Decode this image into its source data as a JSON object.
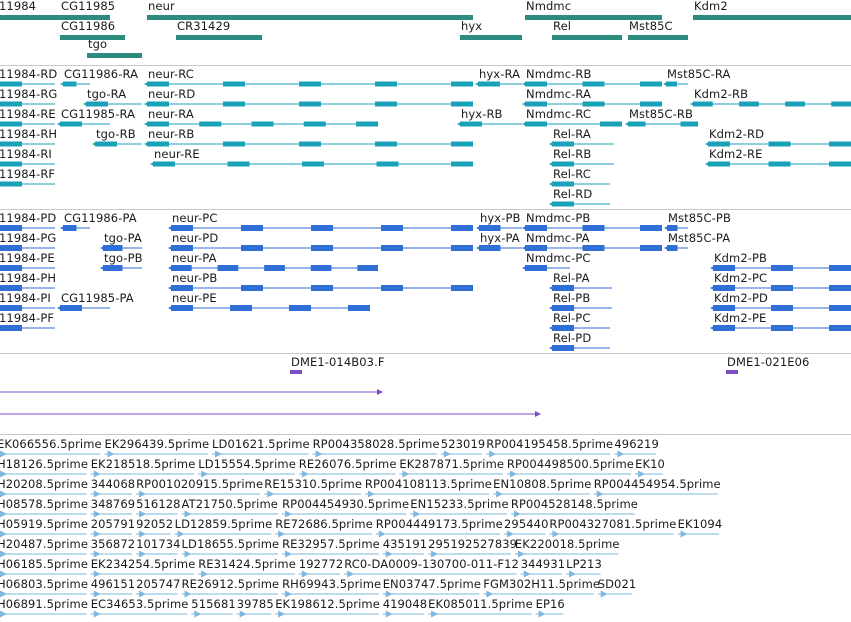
{
  "colors": {
    "gene": "#2e8b7f",
    "flybase": "#17a2b8",
    "refseq": "#2f6fd6",
    "clone": "#7c4fc7",
    "est": "#7fb7e0",
    "separator": "#c9c9c9"
  },
  "tracks": {
    "genes": {
      "color": "gene",
      "features": [
        {
          "label": "11984",
          "row": 0,
          "start": -2,
          "end": 65
        },
        {
          "label": "CG11985",
          "row": 0,
          "start": 60,
          "end": 110
        },
        {
          "label": "CG11986",
          "row": 1,
          "start": 60,
          "end": 125
        },
        {
          "label": "tgo",
          "row": 2,
          "start": 87,
          "end": 142
        },
        {
          "label": "neur",
          "row": 0,
          "start": 147,
          "end": 473
        },
        {
          "label": "CR31429",
          "row": 1,
          "start": 176,
          "end": 262
        },
        {
          "label": "hyx",
          "row": 1,
          "start": 460,
          "end": 522
        },
        {
          "label": "Nmdmc",
          "row": 0,
          "start": 525,
          "end": 662
        },
        {
          "label": "Rel",
          "row": 1,
          "start": 552,
          "end": 622
        },
        {
          "label": "Mst85C",
          "row": 1,
          "start": 628,
          "end": 688
        },
        {
          "label": "Kdm2",
          "row": 0,
          "start": 693,
          "end": 851
        }
      ]
    },
    "flybase": {
      "color": "flybase",
      "features": [
        {
          "label": "11984-RD",
          "row": 0,
          "start": -2,
          "end": 55
        },
        {
          "label": "11984-RG",
          "row": 1,
          "start": -2,
          "end": 55
        },
        {
          "label": "11984-RE",
          "row": 2,
          "start": -2,
          "end": 55
        },
        {
          "label": "11984-RH",
          "row": 3,
          "start": -2,
          "end": 55
        },
        {
          "label": "11984-RI",
          "row": 4,
          "start": -2,
          "end": 55
        },
        {
          "label": "11984-RF",
          "row": 5,
          "start": -2,
          "end": 55
        },
        {
          "label": "CG11986-RA",
          "row": 0,
          "start": 63,
          "end": 90
        },
        {
          "label": "tgo-RA",
          "row": 1,
          "start": 86,
          "end": 142
        },
        {
          "label": "CG11985-RA",
          "row": 2,
          "start": 60,
          "end": 110
        },
        {
          "label": "tgo-RB",
          "row": 3,
          "start": 95,
          "end": 142
        },
        {
          "label": "neur-RC",
          "row": 0,
          "start": 147,
          "end": 473
        },
        {
          "label": "neur-RD",
          "row": 1,
          "start": 147,
          "end": 473
        },
        {
          "label": "neur-RA",
          "row": 2,
          "start": 147,
          "end": 378
        },
        {
          "label": "neur-RB",
          "row": 3,
          "start": 147,
          "end": 473
        },
        {
          "label": "neur-RE",
          "row": 4,
          "start": 153,
          "end": 473
        },
        {
          "label": "hyx-RA",
          "row": 0,
          "start": 478,
          "end": 522
        },
        {
          "label": "hyx-RB",
          "row": 2,
          "start": 460,
          "end": 522
        },
        {
          "label": "Nmdmc-RB",
          "row": 0,
          "start": 525,
          "end": 662
        },
        {
          "label": "Nmdmc-RA",
          "row": 1,
          "start": 525,
          "end": 662
        },
        {
          "label": "Nmdmc-RC",
          "row": 2,
          "start": 525,
          "end": 622
        },
        {
          "label": "Rel-RA",
          "row": 3,
          "start": 552,
          "end": 614
        },
        {
          "label": "Rel-RB",
          "row": 4,
          "start": 552,
          "end": 614
        },
        {
          "label": "Rel-RC",
          "row": 5,
          "start": 552,
          "end": 610
        },
        {
          "label": "Rel-RD",
          "row": 6,
          "start": 552,
          "end": 610
        },
        {
          "label": "Mst85C-RA",
          "row": 0,
          "start": 666,
          "end": 688
        },
        {
          "label": "Mst85C-RB",
          "row": 2,
          "start": 628,
          "end": 698
        },
        {
          "label": "Kdm2-RB",
          "row": 1,
          "start": 693,
          "end": 851
        },
        {
          "label": "Kdm2-RD",
          "row": 3,
          "start": 708,
          "end": 851
        },
        {
          "label": "Kdm2-RE",
          "row": 4,
          "start": 708,
          "end": 851
        }
      ]
    },
    "refseq": {
      "color": "refseq",
      "features": [
        {
          "label": "11984-PD",
          "row": 0,
          "start": -2,
          "end": 55
        },
        {
          "label": "11984-PG",
          "row": 1,
          "start": -2,
          "end": 55
        },
        {
          "label": "11984-PE",
          "row": 2,
          "start": -2,
          "end": 55
        },
        {
          "label": "11984-PH",
          "row": 3,
          "start": -2,
          "end": 55
        },
        {
          "label": "11984-PI",
          "row": 4,
          "start": -2,
          "end": 55
        },
        {
          "label": "11984-PF",
          "row": 5,
          "start": -2,
          "end": 55
        },
        {
          "label": "CG11986-PA",
          "row": 0,
          "start": 63,
          "end": 90
        },
        {
          "label": "tgo-PA",
          "row": 1,
          "start": 103,
          "end": 142
        },
        {
          "label": "tgo-PB",
          "row": 2,
          "start": 103,
          "end": 142
        },
        {
          "label": "CG11985-PA",
          "row": 4,
          "start": 60,
          "end": 110
        },
        {
          "label": "neur-PC",
          "row": 0,
          "start": 171,
          "end": 473
        },
        {
          "label": "neur-PD",
          "row": 1,
          "start": 171,
          "end": 473
        },
        {
          "label": "neur-PA",
          "row": 2,
          "start": 171,
          "end": 378
        },
        {
          "label": "neur-PB",
          "row": 3,
          "start": 171,
          "end": 473
        },
        {
          "label": "neur-PE",
          "row": 4,
          "start": 171,
          "end": 370
        },
        {
          "label": "hyx-PB",
          "row": 0,
          "start": 479,
          "end": 522
        },
        {
          "label": "hyx-PA",
          "row": 1,
          "start": 479,
          "end": 522
        },
        {
          "label": "Nmdmc-PB",
          "row": 0,
          "start": 525,
          "end": 662
        },
        {
          "label": "Nmdmc-PA",
          "row": 1,
          "start": 525,
          "end": 662
        },
        {
          "label": "Nmdmc-PC",
          "row": 2,
          "start": 525,
          "end": 570
        },
        {
          "label": "Rel-PA",
          "row": 3,
          "start": 552,
          "end": 612
        },
        {
          "label": "Rel-PB",
          "row": 4,
          "start": 552,
          "end": 612
        },
        {
          "label": "Rel-PC",
          "row": 5,
          "start": 552,
          "end": 610
        },
        {
          "label": "Rel-PD",
          "row": 6,
          "start": 552,
          "end": 610
        },
        {
          "label": "Mst85C-PB",
          "row": 0,
          "start": 667,
          "end": 688
        },
        {
          "label": "Mst85C-PA",
          "row": 1,
          "start": 667,
          "end": 688
        },
        {
          "label": "Kdm2-PB",
          "row": 2,
          "start": 713,
          "end": 851
        },
        {
          "label": "Kdm2-PC",
          "row": 3,
          "start": 713,
          "end": 851
        },
        {
          "label": "Kdm2-PD",
          "row": 4,
          "start": 713,
          "end": 851
        },
        {
          "label": "Kdm2-PE",
          "row": 5,
          "start": 713,
          "end": 851
        }
      ]
    },
    "clones": {
      "color": "clone",
      "features": [
        {
          "label": "DME1-014B03.F",
          "row": 0,
          "start": 290,
          "end": 302
        },
        {
          "label": "DME1-021E06",
          "row": 0,
          "start": 726,
          "end": 738
        },
        {
          "label": "",
          "row": 1,
          "start": -2,
          "end": 382
        },
        {
          "label": "",
          "row": 2,
          "start": -2,
          "end": 540
        }
      ]
    },
    "est": {
      "color": "est",
      "labels": [
        [
          "EK066556.5prime",
          "EK296439.5prime",
          "LD01621.5prime",
          "RP004358028.5prime",
          "523019",
          "RP004195458.5prime",
          "496219"
        ],
        [
          "H18126.5prime",
          "EK218518.5prime",
          "LD15554.5prime",
          "RE26076.5prime",
          "EK287871.5prime",
          "RP004498500.5prime",
          "EK10"
        ],
        [
          "H20208.5prime",
          "344068",
          "RP001020915.5prime",
          "RE15310.5prime",
          "RP004108113.5prime",
          "EN10808.5prime",
          "RP004454954.5prime"
        ],
        [
          "H08578.5prime",
          "348769",
          "516128",
          "AT21750.5prime",
          "RP004454930.5prime",
          "EN15233.5prime",
          "RP004528148.5prime"
        ],
        [
          "H05919.5prime",
          "205791",
          "92052",
          "LD12859.5prime",
          "RE72686.5prime",
          "RP004449173.5prime",
          "295440",
          "RP004327081.5prime",
          "EK1094"
        ],
        [
          "H20487.5prime",
          "356872",
          "101734",
          "LD18655.5prime",
          "RE32957.5prime",
          "435191",
          "295192527839",
          "EK220018.5prime"
        ],
        [
          "H06185.5prime",
          "EK234254.5prime",
          "RE31424.5prime",
          "192772",
          "RC0-DA0009-130700-011-F12",
          "344931",
          "LP213"
        ],
        [
          "H06803.5prime",
          "496151",
          "205747",
          "RE26912.5prime",
          "RH69943.5prime",
          "EN03747.5prime",
          "FGM302H11.5prime",
          "SD021"
        ],
        [
          "H06891.5prime",
          "EC34653.5prime",
          "515681",
          "39785",
          "EK198612.5prime",
          "419048",
          "EK085011.5prime",
          "EP16"
        ]
      ]
    }
  }
}
